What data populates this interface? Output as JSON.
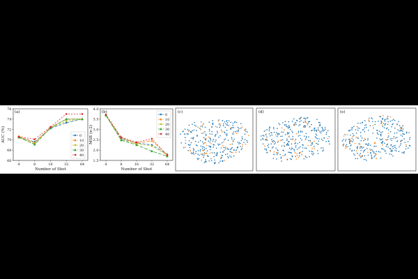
{
  "chart_data": [
    {
      "type": "line",
      "panel_label": "(a)",
      "xlabel": "Number of Shot",
      "ylabel": "AUC (%)",
      "x": [
        "4",
        "8",
        "16",
        "32",
        "64"
      ],
      "ylim": [
        66,
        76
      ],
      "yticks": [
        66,
        68,
        70,
        72,
        74,
        76
      ],
      "legend_position": "lower-right",
      "series": [
        {
          "name": "0",
          "color": "#1f77b4",
          "values": [
            70.5,
            69.6,
            72.2,
            73.3,
            74.0
          ]
        },
        {
          "name": "10",
          "color": "#ff7f0e",
          "values": [
            70.7,
            69.4,
            72.4,
            74.0,
            74.0
          ]
        },
        {
          "name": "20",
          "color": "#bcbd22",
          "values": [
            70.4,
            69.2,
            72.3,
            73.6,
            74.0
          ]
        },
        {
          "name": "30",
          "color": "#2ca02c",
          "values": [
            70.5,
            69.1,
            72.3,
            74.0,
            74.0
          ]
        },
        {
          "name": "40",
          "color": "#d62728",
          "values": [
            70.6,
            70.1,
            72.5,
            75.0,
            75.0
          ]
        }
      ]
    },
    {
      "type": "line",
      "panel_label": "(b)",
      "xlabel": "Number of Shot",
      "ylabel": "MSE (e-2)",
      "x": [
        "4",
        "8",
        "16",
        "32",
        "64"
      ],
      "ylim": [
        1.5,
        4.0
      ],
      "yticks": [
        "1.5",
        "2.0",
        "2.5",
        "3.0",
        "3.5",
        "4.0"
      ],
      "legend_position": "upper-right",
      "series": [
        {
          "name": "0",
          "color": "#1f77b4",
          "values": [
            3.7,
            2.55,
            2.35,
            2.25,
            1.8
          ]
        },
        {
          "name": "10",
          "color": "#ff7f0e",
          "values": [
            3.68,
            2.6,
            2.33,
            2.45,
            1.78
          ]
        },
        {
          "name": "20",
          "color": "#bcbd22",
          "values": [
            3.7,
            2.5,
            2.3,
            2.2,
            1.75
          ]
        },
        {
          "name": "30",
          "color": "#2ca02c",
          "values": [
            3.68,
            2.48,
            2.25,
            1.95,
            1.7
          ]
        },
        {
          "name": "40",
          "color": "#d62728",
          "values": [
            3.72,
            2.62,
            2.38,
            2.55,
            1.75
          ]
        }
      ]
    },
    {
      "type": "scatter",
      "panel_label": "(c)",
      "point_colors": [
        "#1f77b4",
        "#ff7f0e"
      ],
      "orange_share": 0.14,
      "points": 320
    },
    {
      "type": "scatter",
      "panel_label": "(d)",
      "point_colors": [
        "#1f77b4",
        "#ff7f0e"
      ],
      "orange_share": 0.16,
      "points": 320
    },
    {
      "type": "scatter",
      "panel_label": "(e)",
      "point_colors": [
        "#1f77b4",
        "#ff7f0e"
      ],
      "orange_share": 0.12,
      "points": 320
    }
  ]
}
